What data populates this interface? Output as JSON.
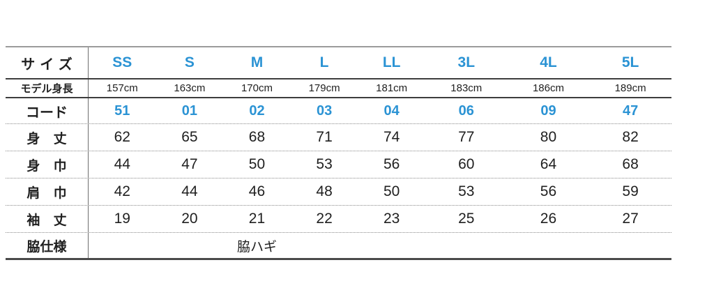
{
  "colors": {
    "accent_blue": "#2b93d4",
    "text_ink": "#1f1f1f"
  },
  "table": {
    "size_row": {
      "label": "サイズ",
      "sizes": [
        "SS",
        "S",
        "M",
        "L",
        "LL",
        "3L",
        "4L",
        "5L"
      ]
    },
    "model_height": {
      "label": "モデル身長",
      "values": [
        "157cm",
        "163cm",
        "170cm",
        "179cm",
        "181cm",
        "183cm",
        "186cm",
        "189cm"
      ]
    },
    "code": {
      "label": "コード",
      "values": [
        "51",
        "01",
        "02",
        "03",
        "04",
        "06",
        "09",
        "47"
      ]
    },
    "measurements": [
      {
        "label": "身 丈",
        "values": [
          "62",
          "65",
          "68",
          "71",
          "74",
          "77",
          "80",
          "82"
        ]
      },
      {
        "label": "身 巾",
        "values": [
          "44",
          "47",
          "50",
          "53",
          "56",
          "60",
          "64",
          "68"
        ]
      },
      {
        "label": "肩 巾",
        "values": [
          "42",
          "44",
          "46",
          "48",
          "50",
          "53",
          "56",
          "59"
        ]
      },
      {
        "label": "袖 丈",
        "values": [
          "19",
          "20",
          "21",
          "22",
          "23",
          "25",
          "26",
          "27"
        ]
      }
    ],
    "side_spec": {
      "label": "脇仕様",
      "value": "脇ハギ"
    }
  }
}
